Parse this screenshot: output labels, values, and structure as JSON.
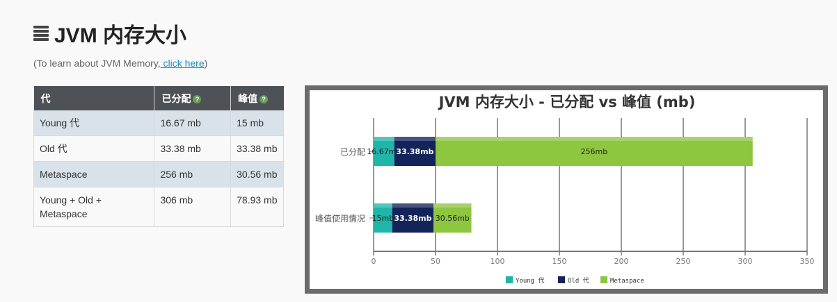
{
  "header": {
    "title": "JVM 内存大小",
    "hint_prefix": "(To learn about JVM Memory,",
    "hint_link": " click here",
    "hint_suffix": ")"
  },
  "table": {
    "columns": [
      "代",
      "已分配",
      "峰值"
    ],
    "rows": [
      [
        "Young 代",
        "16.67 mb",
        "15 mb"
      ],
      [
        "Old 代",
        "33.38 mb",
        "33.38 mb"
      ],
      [
        "Metaspace",
        "256 mb",
        "30.56 mb"
      ],
      [
        "Young + Old + Metaspace",
        "306 mb",
        "78.93 mb"
      ]
    ]
  },
  "chart_data": {
    "type": "bar",
    "orientation": "horizontal",
    "stacked": true,
    "title": "JVM 内存大小 - 已分配 vs 峰值 (mb)",
    "categories": [
      "已分配",
      "峰值使用情况"
    ],
    "series": [
      {
        "name": "Young 代",
        "color": "#1fb5a8",
        "values": [
          16.67,
          15
        ],
        "labels": [
          "16.67mb",
          "15mb"
        ]
      },
      {
        "name": "Old 代",
        "color": "#14245a",
        "values": [
          33.38,
          33.38
        ],
        "labels": [
          "33.38mb",
          "33.38mb"
        ]
      },
      {
        "name": "Metaspace",
        "color": "#8dc63f",
        "values": [
          256,
          30.56
        ],
        "labels": [
          "256mb",
          "30.56mb"
        ]
      }
    ],
    "xlim": [
      0,
      350
    ],
    "xticks": [
      0,
      50,
      100,
      150,
      200,
      250,
      300,
      350
    ],
    "grid": true,
    "legend_position": "bottom"
  }
}
